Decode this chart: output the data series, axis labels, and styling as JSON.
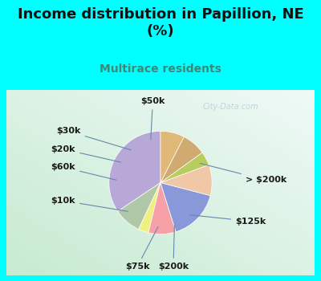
{
  "title": "Income distribution in Papillion, NE\n(%)",
  "subtitle": "Multirace residents",
  "bg_color": "#00FFFF",
  "chart_bg_top": "#e8f4f4",
  "chart_bg_bottom": "#c8e8d0",
  "labels": [
    "> $200k",
    "$125k",
    "$200k",
    "$75k",
    "$10k",
    "$60k",
    "$20k",
    "$30k",
    "$50k"
  ],
  "values": [
    32,
    8,
    3,
    8,
    15,
    9,
    4,
    7,
    7
  ],
  "colors": [
    "#b8a8d8",
    "#b0c8a8",
    "#f0f080",
    "#f8a0a8",
    "#8898d8",
    "#f0c8a8",
    "#b8cc60",
    "#d0aa70",
    "#e0b878"
  ],
  "startangle": 90,
  "wedge_edge_color": "white",
  "wedge_lw": 0.5,
  "annotation_color": "#6688aa",
  "annotation_lw": 0.8,
  "label_fontsize": 8,
  "label_color": "#1a1a1a",
  "title_fontsize": 13,
  "subtitle_fontsize": 10,
  "subtitle_color": "#3a8a7a",
  "watermark": "City-Data.com",
  "watermark_color": "#aabbcc",
  "watermark_alpha": 0.6
}
